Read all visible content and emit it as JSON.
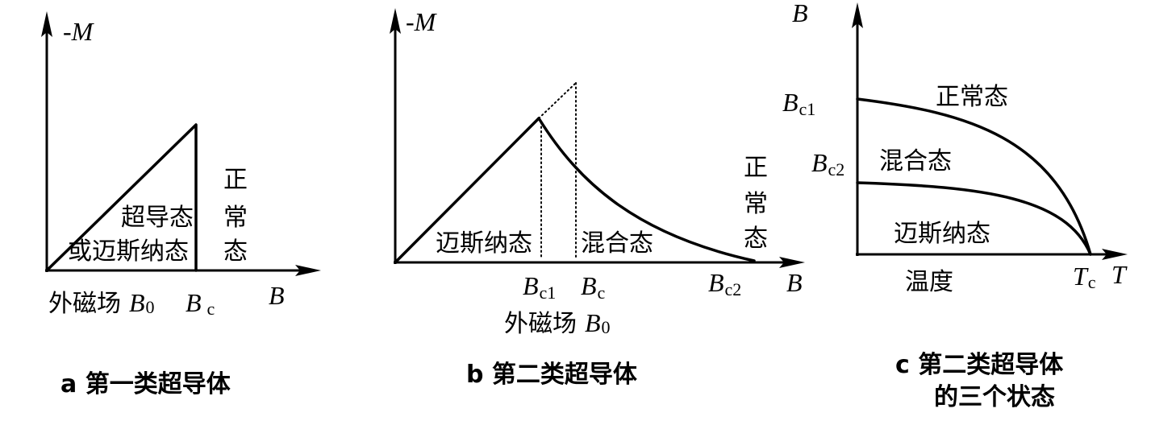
{
  "colors": {
    "ink": "#000000",
    "background": "#ffffff"
  },
  "panel_a": {
    "y_axis_label": "-M",
    "x_axis_label": "B",
    "superconducting_state": [
      "超导态",
      "或迈斯纳态"
    ],
    "normal_state": [
      "正",
      "常",
      "态"
    ],
    "applied_field": {
      "prefix": "外磁场",
      "symbol": "B",
      "subscript": "0"
    },
    "critical_field": {
      "symbol": "B",
      "subscript": "c"
    },
    "caption": "a 第一类超导体"
  },
  "panel_b": {
    "y_axis_label": "-M",
    "x_axis_label": "B",
    "meissner_state": "迈斯纳态",
    "mixed_state": "混合态",
    "normal_state": [
      "正",
      "常",
      "态"
    ],
    "field_c1": {
      "symbol": "B",
      "subscript": "c1"
    },
    "field_c": {
      "symbol": "B",
      "subscript": "c"
    },
    "field_c2": {
      "symbol": "B",
      "subscript": "c2"
    },
    "applied_field": {
      "prefix": "外磁场",
      "symbol": "B",
      "subscript": "0"
    },
    "caption": "b 第二类超导体"
  },
  "panel_c": {
    "y_axis_label": "B",
    "x_axis_label": "T",
    "normal_mixed_boundary_label": {
      "symbol": "B",
      "subscript": "c1"
    },
    "mixed_meissner_boundary_label": {
      "symbol": "B",
      "subscript": "c2"
    },
    "normal_state": "正常态",
    "mixed_state": "混合态",
    "meissner_state": "迈斯纳态",
    "temperature_label": "温度",
    "critical_temperature": {
      "symbol": "T",
      "subscript": "c"
    },
    "caption": [
      "c 第二类超导体",
      "的三个状态"
    ]
  }
}
